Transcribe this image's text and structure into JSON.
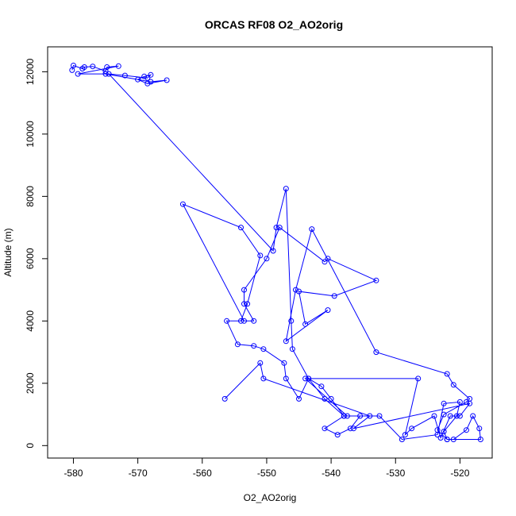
{
  "chart_data": {
    "type": "line",
    "title": "ORCAS RF08 O2_AO2orig",
    "xlabel": "O2_AO2orig",
    "ylabel": "Altitude (m)",
    "xlim": [
      -584,
      -515
    ],
    "ylim": [
      -400,
      12800
    ],
    "x_ticks": [
      -580,
      -570,
      -560,
      -550,
      -540,
      -530,
      -520
    ],
    "y_ticks": [
      0,
      2000,
      4000,
      6000,
      8000,
      10000,
      12000
    ],
    "grid": false,
    "legend": "none",
    "colors": {
      "series": "#0000ff",
      "axes": "#000000"
    },
    "series": [
      {
        "marker": "open-circle",
        "points": [
          [
            -580.2,
            12050
          ],
          [
            -580.0,
            12200
          ],
          [
            -578.6,
            12100
          ],
          [
            -578.3,
            12150
          ],
          [
            -577.0,
            12170
          ],
          [
            -575.0,
            12020
          ],
          [
            -574.8,
            12150
          ],
          [
            -573.0,
            12180
          ],
          [
            -579.3,
            11930
          ],
          [
            -575.0,
            11930
          ],
          [
            -568.0,
            11680
          ],
          [
            -565.5,
            11730
          ],
          [
            -568.5,
            11620
          ],
          [
            -570.0,
            11750
          ],
          [
            -569.0,
            11850
          ],
          [
            -568.0,
            11900
          ],
          [
            -568.5,
            11800
          ],
          [
            -572.0,
            11880
          ],
          [
            -574.5,
            11930
          ],
          [
            -549.0,
            6250
          ],
          [
            -548.5,
            7000
          ],
          [
            -547.0,
            8250
          ],
          [
            -546.2,
            4000
          ],
          [
            -546.0,
            3100
          ],
          [
            -543.5,
            2150
          ],
          [
            -541.0,
            1500
          ],
          [
            -538.0,
            950
          ],
          [
            -535.5,
            950
          ],
          [
            -537.0,
            550
          ],
          [
            -539.0,
            350
          ],
          [
            -541.0,
            550
          ],
          [
            -538.0,
            950
          ],
          [
            -540.0,
            1500
          ],
          [
            -541.5,
            1900
          ],
          [
            -543.5,
            2150
          ],
          [
            -545.0,
            1500
          ],
          [
            -547.0,
            2150
          ],
          [
            -547.3,
            2650
          ],
          [
            -550.5,
            3100
          ],
          [
            -552.0,
            3200
          ],
          [
            -554.5,
            3250
          ],
          [
            -556.2,
            4000
          ],
          [
            -554.0,
            4000
          ],
          [
            -553.0,
            4550
          ],
          [
            -551.0,
            6100
          ],
          [
            -554.0,
            7000
          ],
          [
            -563.0,
            7750
          ],
          [
            -553.5,
            4000
          ],
          [
            -552.0,
            4000
          ],
          [
            -553.5,
            4550
          ],
          [
            -553.5,
            5000
          ],
          [
            -550.0,
            6000
          ],
          [
            -548.0,
            7000
          ],
          [
            -541.0,
            5900
          ],
          [
            -540.5,
            6000
          ],
          [
            -533.0,
            5300
          ],
          [
            -539.5,
            4800
          ],
          [
            -545.0,
            4950
          ],
          [
            -544.0,
            3900
          ],
          [
            -540.5,
            4350
          ],
          [
            -547.0,
            3350
          ],
          [
            -545.5,
            5000
          ],
          [
            -543.0,
            6950
          ],
          [
            -533.0,
            3000
          ],
          [
            -522.0,
            2300
          ],
          [
            -521.0,
            1950
          ],
          [
            -518.5,
            1500
          ],
          [
            -519.0,
            1400
          ],
          [
            -522.5,
            1000
          ],
          [
            -523.5,
            500
          ],
          [
            -522.0,
            200
          ],
          [
            -521.0,
            200
          ],
          [
            -519.0,
            500
          ],
          [
            -518.0,
            950
          ],
          [
            -517.0,
            550
          ],
          [
            -516.8,
            200
          ],
          [
            -522.0,
            200
          ],
          [
            -522.5,
            450
          ],
          [
            -520.5,
            950
          ],
          [
            -520.0,
            1400
          ],
          [
            -522.5,
            1350
          ],
          [
            -523.5,
            350
          ],
          [
            -529.0,
            200
          ],
          [
            -532.5,
            950
          ],
          [
            -537.5,
            950
          ],
          [
            -544.0,
            2150
          ],
          [
            -526.5,
            2150
          ],
          [
            -528.5,
            350
          ],
          [
            -527.5,
            550
          ],
          [
            -524.0,
            950
          ],
          [
            -523.0,
            250
          ],
          [
            -521.5,
            950
          ],
          [
            -520.0,
            950
          ],
          [
            -518.5,
            1350
          ],
          [
            -536.5,
            550
          ],
          [
            -534.0,
            950
          ],
          [
            -550.5,
            2150
          ],
          [
            -551.0,
            2650
          ],
          [
            -556.5,
            1500
          ]
        ]
      }
    ]
  }
}
